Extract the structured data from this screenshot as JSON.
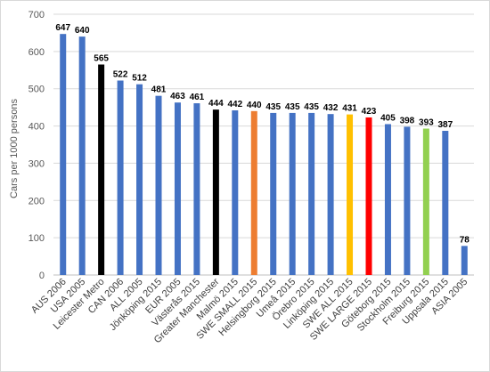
{
  "chart_data": {
    "type": "bar",
    "title": "",
    "xlabel": "",
    "ylabel": "Cars per 1000 persons",
    "ylim": [
      0,
      700
    ],
    "yticks": [
      0,
      100,
      200,
      300,
      400,
      500,
      600,
      700
    ],
    "grid": true,
    "legend": "none",
    "categories": [
      "AUS 2006",
      "USA 2005",
      "Leicester Metro",
      "CAN 2006",
      "ALL 2005",
      "Jönköping 2015",
      "EUR 2005",
      "Västerås 2015",
      "Greater Manchester",
      "Malmö 2015",
      "SWE SMALL 2015",
      "Helsingborg 2015",
      "Umeå 2015",
      "Örebro 2015",
      "Linköping 2015",
      "SWE ALL 2015",
      "SWE LARGE 2015",
      "Göteborg 2015",
      "Stockholm 2015",
      "Freiburg 2015",
      "Uppsala 2015",
      "ASIA 2005"
    ],
    "values": [
      647,
      640,
      565,
      522,
      512,
      481,
      463,
      461,
      444,
      442,
      440,
      435,
      435,
      435,
      432,
      431,
      423,
      405,
      398,
      393,
      387,
      78
    ],
    "colors": [
      "#4472c4",
      "#4472c4",
      "#000000",
      "#4472c4",
      "#4472c4",
      "#4472c4",
      "#4472c4",
      "#4472c4",
      "#000000",
      "#4472c4",
      "#ed7d31",
      "#4472c4",
      "#4472c4",
      "#4472c4",
      "#4472c4",
      "#ffc000",
      "#ff0000",
      "#4472c4",
      "#4472c4",
      "#92d050",
      "#4472c4",
      "#4472c4"
    ]
  }
}
